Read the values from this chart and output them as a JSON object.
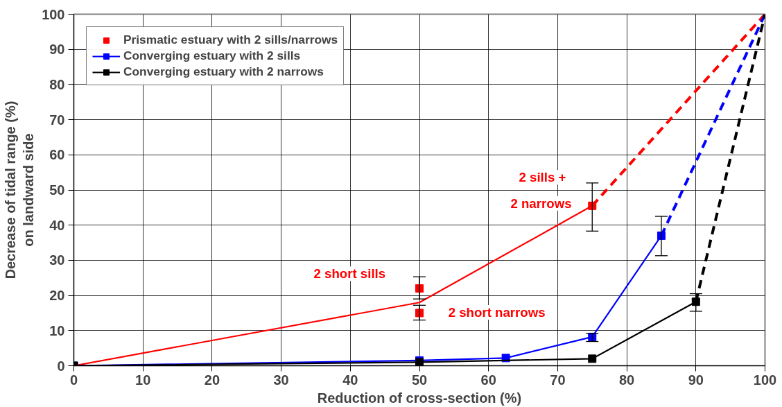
{
  "chart_data": {
    "type": "line",
    "xlabel": "Reduction of cross-section (%)",
    "ylabel": "Decrease of tidal range (%)\non landward side",
    "xlim": [
      0,
      100
    ],
    "xticks": [
      0,
      10,
      20,
      30,
      40,
      50,
      60,
      70,
      80,
      90,
      100
    ],
    "ylim": [
      0,
      100
    ],
    "yticks": [
      0,
      10,
      20,
      30,
      40,
      50,
      60,
      70,
      80,
      90,
      100
    ],
    "grid": true,
    "legend": "top left",
    "series": [
      {
        "name": "Prismatic estuary with 2 sills/narrows",
        "type": "scatter",
        "marker": "square",
        "color": "#ff0000",
        "x": [
          50,
          50,
          75
        ],
        "values": [
          22,
          15,
          45.5
        ],
        "errors": [
          [
            19,
            25.3
          ],
          [
            13,
            17.2
          ],
          [
            38.3,
            52
          ]
        ]
      },
      {
        "marker": "none",
        "line_style": "solid",
        "color": "#ff0000",
        "x": [
          0,
          50,
          75
        ],
        "values": [
          0,
          18,
          45.5
        ]
      },
      {
        "marker": "none",
        "line_style": "dashed",
        "color": "#ff0000",
        "x": [
          75,
          100
        ],
        "values": [
          45.5,
          100
        ]
      },
      {
        "name": "Converging estuary with 2 sills",
        "marker": "square",
        "line_style": "solid",
        "color": "#0000ff",
        "x": [
          0,
          50,
          62.5,
          75,
          85
        ],
        "values": [
          0,
          1.5,
          2.2,
          8.2,
          37
        ],
        "errors": [
          null,
          null,
          null,
          [
            6.9,
            9.2
          ],
          [
            31.3,
            42.5
          ]
        ]
      },
      {
        "marker": "none",
        "line_style": "dashed",
        "color": "#0000ff",
        "x": [
          85,
          100
        ],
        "values": [
          37,
          100
        ]
      },
      {
        "name": "Converging estuary with 2 narrows",
        "marker": "square",
        "line_style": "solid",
        "color": "#000000",
        "x": [
          0,
          50,
          75,
          90
        ],
        "values": [
          0,
          1,
          2,
          18.2
        ],
        "errors": [
          null,
          null,
          null,
          [
            15.5,
            20.5
          ]
        ]
      },
      {
        "marker": "none",
        "line_style": "dashed",
        "color": "#000000",
        "x": [
          90,
          100
        ],
        "values": [
          18.2,
          100
        ]
      }
    ],
    "annotations": [
      "2 short sills",
      "2 short narrows",
      "2 sills +",
      "2 narrows"
    ]
  }
}
